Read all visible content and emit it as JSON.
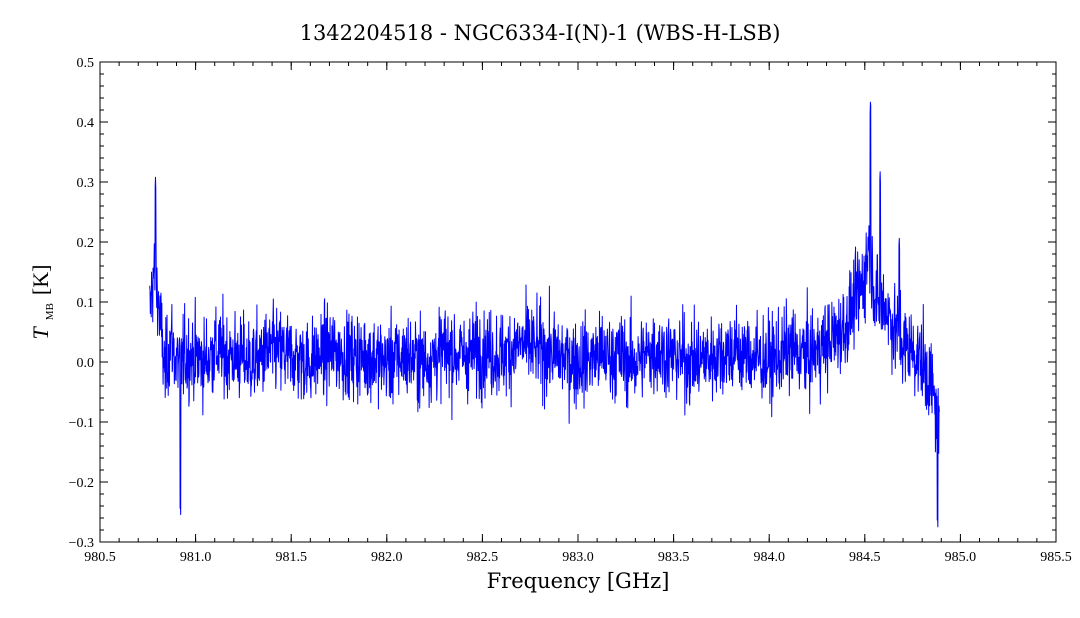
{
  "chart_data": {
    "type": "line",
    "title": "1342204518 - NGC6334-I(N)-1 (WBS-H-LSB)",
    "xlabel": "Frequency [GHz]",
    "ylabel": {
      "symbol": "T",
      "subscript": "MB",
      "unit": "[K]"
    },
    "xlim": [
      980.5,
      985.5
    ],
    "ylim": [
      -0.3,
      0.5
    ],
    "x_ticks": [
      "980.5",
      "981.0",
      "981.5",
      "982.0",
      "982.5",
      "983.0",
      "983.5",
      "984.0",
      "984.5",
      "985.0",
      "985.5"
    ],
    "y_ticks": [
      "−0.3",
      "−0.2",
      "−0.1",
      "0.0",
      "0.1",
      "0.2",
      "0.3",
      "0.4",
      "0.5"
    ],
    "grid": false,
    "series_color": "#0000ff",
    "series": [
      {
        "x": [
          980.76,
          980.78,
          980.8,
          980.82,
          980.84,
          980.87,
          980.9,
          980.95,
          981.0,
          981.05,
          981.1,
          981.2,
          981.3,
          981.4,
          981.5,
          981.6,
          981.7,
          981.8,
          981.9,
          982.0,
          982.1,
          982.2,
          982.3,
          982.4,
          982.5,
          982.6,
          982.7,
          982.8,
          982.9,
          983.0,
          983.1,
          983.2,
          983.3,
          983.4,
          983.5,
          983.6,
          983.7,
          983.8,
          983.9,
          984.0,
          984.1,
          984.2,
          984.3,
          984.4,
          984.45,
          984.5,
          984.52,
          984.53,
          984.55,
          984.58,
          984.6,
          984.65,
          984.7,
          984.75,
          984.8,
          984.85,
          984.88,
          984.89
        ],
        "y": [
          0.08,
          0.15,
          0.12,
          0.05,
          -0.02,
          0.04,
          0.0,
          0.01,
          0.01,
          0.0,
          0.02,
          0.01,
          0.0,
          0.02,
          0.01,
          0.0,
          0.02,
          0.01,
          0.01,
          0.0,
          0.01,
          0.0,
          0.02,
          0.01,
          0.02,
          0.01,
          0.03,
          0.02,
          0.01,
          0.0,
          0.01,
          0.01,
          0.0,
          0.02,
          0.01,
          0.0,
          0.01,
          0.02,
          0.01,
          0.0,
          0.02,
          0.01,
          0.03,
          0.06,
          0.1,
          0.14,
          0.2,
          0.18,
          0.12,
          0.08,
          0.1,
          0.06,
          0.03,
          0.02,
          0.0,
          -0.04,
          -0.1,
          -0.13
        ],
        "noise_rms": 0.05,
        "peaks": [
          {
            "x": 980.79,
            "y": 0.31
          },
          {
            "x": 984.53,
            "y": 0.44
          },
          {
            "x": 984.58,
            "y": 0.32
          },
          {
            "x": 984.68,
            "y": 0.21
          },
          {
            "x": 984.88,
            "y": -0.25
          },
          {
            "x": 980.92,
            "y": -0.23
          }
        ]
      }
    ]
  }
}
